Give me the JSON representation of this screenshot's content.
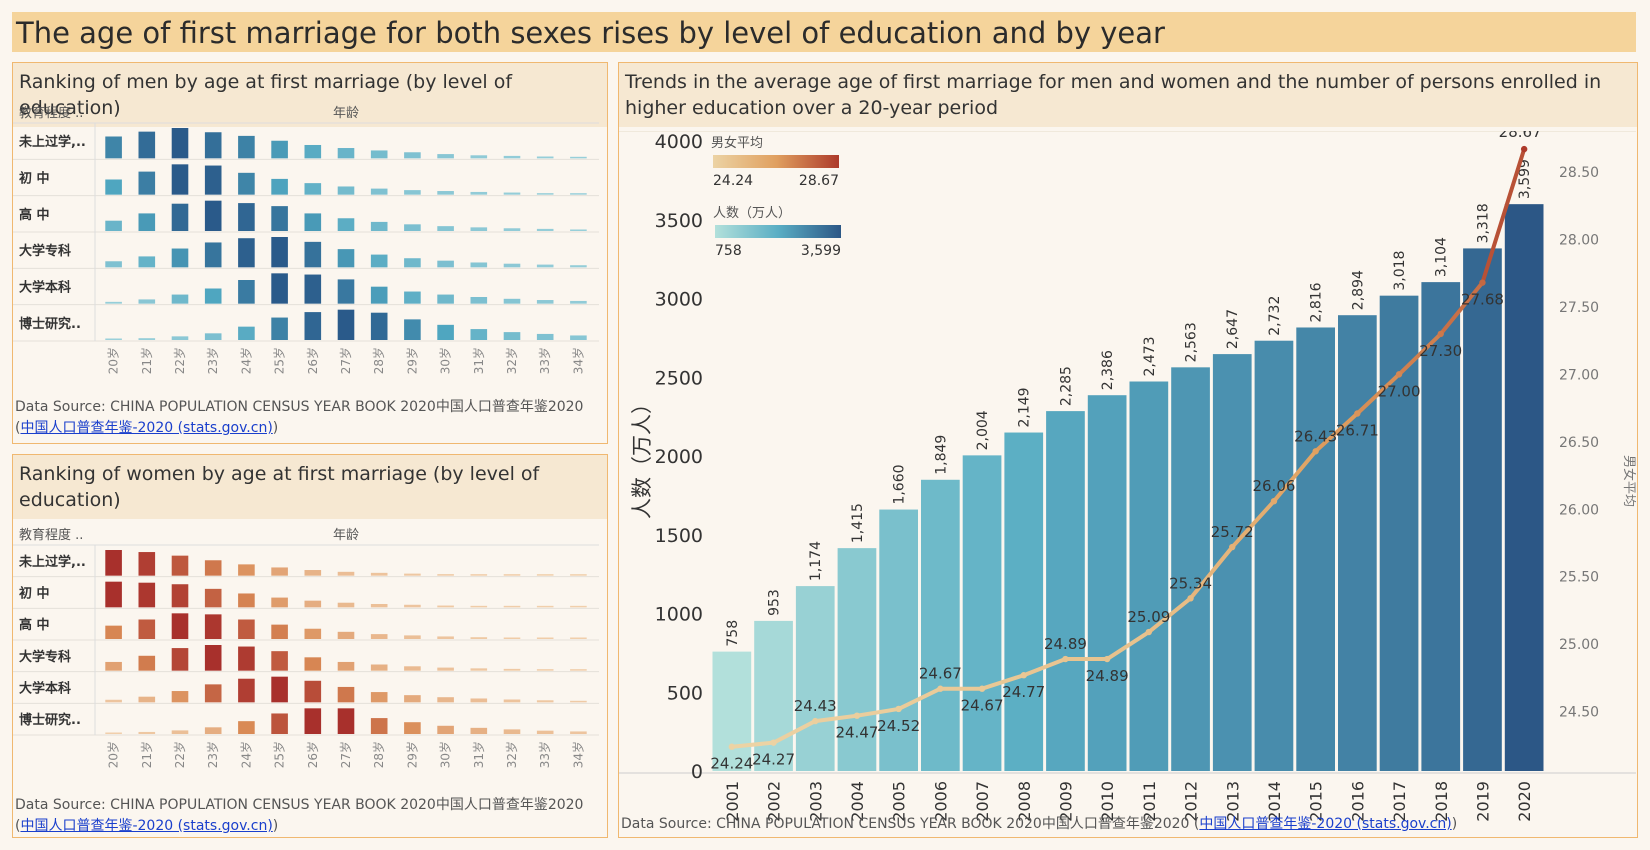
{
  "page_title": "The age of first marriage for both sexes rises by level of education and by year",
  "men_panel": {
    "title": "Ranking of men by age at first marriage (by level of education)",
    "row_header": "教育程度 ..",
    "col_header": "年龄",
    "source_prefix": "Data Source: CHINA POPULATION CENSUS YEAR BOOK 2020中国人口普查年鉴2020",
    "source_link": "中国人口普查年鉴-2020 (stats.gov.cn)"
  },
  "women_panel": {
    "title": "Ranking of women by age at first marriage (by level of education)",
    "row_header": "教育程度 ..",
    "col_header": "年龄",
    "source_prefix": "Data Source: CHINA POPULATION CENSUS YEAR BOOK 2020中国人口普查年鉴2020",
    "source_link": "中国人口普查年鉴-2020 (stats.gov.cn)"
  },
  "trend_panel": {
    "title": "Trends in the average age of first marriage for men and women and the number of persons enrolled in higher education over a 20-year period",
    "source_prefix": "Data Source: CHINA POPULATION CENSUS YEAR BOOK 2020中国人口普查年鉴2020 (",
    "source_link": "中国人口普查年鉴-2020 (stats.gov.cn)",
    "source_suffix": ")"
  },
  "colors": {
    "men_scale": [
      "#9fd3dc",
      "#4fa6c0",
      "#2a5a8a"
    ],
    "women_scale": [
      "#f2d3b0",
      "#d98a55",
      "#a8302c"
    ],
    "bar_scale": [
      "#b2e0db",
      "#5aaec4",
      "#2c5786"
    ],
    "line_scale": [
      "#ecd3a4",
      "#e0a060",
      "#ad3a2a"
    ]
  },
  "chart_data": [
    {
      "type": "heatmap",
      "title": "Ranking of men by age at first marriage (by level of education)",
      "row_label": "教育程度 ..",
      "col_label": "年龄",
      "rows": [
        "未上过学,..",
        "初 中",
        "高 中",
        "大学专科",
        "大学本科",
        "博士研究.."
      ],
      "cols": [
        "20岁",
        "21岁",
        "22岁",
        "23岁",
        "24岁",
        "25岁",
        "26岁",
        "27岁",
        "28岁",
        "29岁",
        "30岁",
        "31岁",
        "32岁",
        "33岁",
        "34岁"
      ],
      "values": [
        [
          0.72,
          0.88,
          1.0,
          0.86,
          0.74,
          0.58,
          0.44,
          0.34,
          0.26,
          0.2,
          0.14,
          0.1,
          0.08,
          0.06,
          0.05
        ],
        [
          0.5,
          0.76,
          1.0,
          0.96,
          0.72,
          0.52,
          0.38,
          0.27,
          0.2,
          0.15,
          0.12,
          0.09,
          0.07,
          0.05,
          0.04
        ],
        [
          0.34,
          0.58,
          0.9,
          1.0,
          0.92,
          0.82,
          0.58,
          0.42,
          0.3,
          0.22,
          0.16,
          0.12,
          0.09,
          0.07,
          0.05
        ],
        [
          0.2,
          0.36,
          0.62,
          0.82,
          0.96,
          1.0,
          0.84,
          0.6,
          0.42,
          0.3,
          0.22,
          0.16,
          0.12,
          0.09,
          0.07
        ],
        [
          0.06,
          0.14,
          0.3,
          0.5,
          0.78,
          1.0,
          0.96,
          0.8,
          0.56,
          0.4,
          0.3,
          0.22,
          0.16,
          0.12,
          0.09
        ],
        [
          0.03,
          0.06,
          0.12,
          0.22,
          0.44,
          0.74,
          0.92,
          1.0,
          0.9,
          0.68,
          0.5,
          0.36,
          0.26,
          0.2,
          0.15
        ]
      ]
    },
    {
      "type": "heatmap",
      "title": "Ranking of women by age at first marriage (by level of education)",
      "row_label": "教育程度 ..",
      "col_label": "年龄",
      "rows": [
        "未上过学,..",
        "初 中",
        "高 中",
        "大学专科",
        "大学本科",
        "博士研究.."
      ],
      "cols": [
        "20岁",
        "21岁",
        "22岁",
        "23岁",
        "24岁",
        "25岁",
        "26岁",
        "27岁",
        "28岁",
        "29岁",
        "30岁",
        "31岁",
        "32岁",
        "33岁",
        "34岁"
      ],
      "values": [
        [
          1.0,
          0.92,
          0.78,
          0.6,
          0.44,
          0.32,
          0.22,
          0.15,
          0.11,
          0.08,
          0.06,
          0.05,
          0.04,
          0.03,
          0.03
        ],
        [
          1.0,
          0.96,
          0.9,
          0.72,
          0.54,
          0.38,
          0.26,
          0.18,
          0.13,
          0.1,
          0.07,
          0.05,
          0.04,
          0.03,
          0.03
        ],
        [
          0.52,
          0.76,
          1.0,
          0.96,
          0.76,
          0.56,
          0.4,
          0.28,
          0.19,
          0.14,
          0.1,
          0.07,
          0.05,
          0.04,
          0.03
        ],
        [
          0.34,
          0.58,
          0.88,
          1.0,
          0.94,
          0.76,
          0.52,
          0.34,
          0.24,
          0.17,
          0.12,
          0.09,
          0.07,
          0.05,
          0.04
        ],
        [
          0.1,
          0.22,
          0.44,
          0.7,
          0.92,
          1.0,
          0.84,
          0.6,
          0.4,
          0.28,
          0.2,
          0.15,
          0.11,
          0.08,
          0.06
        ],
        [
          0.03,
          0.08,
          0.14,
          0.26,
          0.5,
          0.8,
          1.0,
          1.0,
          0.62,
          0.46,
          0.32,
          0.24,
          0.18,
          0.13,
          0.1
        ]
      ]
    },
    {
      "type": "bar",
      "title": "Trends in the average age of first marriage for men and women and the number of persons enrolled in higher education over a 20-year period",
      "categories": [
        "2001",
        "2002",
        "2003",
        "2004",
        "2005",
        "2006",
        "2007",
        "2008",
        "2009",
        "2010",
        "2011",
        "2012",
        "2013",
        "2014",
        "2015",
        "2016",
        "2017",
        "2018",
        "2019",
        "2020"
      ],
      "series": [
        {
          "name": "人数（万人）",
          "type": "bar",
          "axis": "left",
          "values": [
            758,
            953,
            1174,
            1415,
            1660,
            1849,
            2004,
            2149,
            2285,
            2386,
            2473,
            2563,
            2647,
            2732,
            2816,
            2894,
            3018,
            3104,
            3318,
            3599
          ],
          "labels": [
            "758",
            "953",
            "1,174",
            "1,415",
            "1,660",
            "1,849",
            "2,004",
            "2,149",
            "2,285",
            "2,386",
            "2,473",
            "2,563",
            "2,647",
            "2,732",
            "2,816",
            "2,894",
            "3,018",
            "3,104",
            "3,318",
            "3,599"
          ]
        },
        {
          "name": "男女平均",
          "type": "line",
          "axis": "right",
          "values": [
            24.24,
            24.27,
            24.43,
            24.47,
            24.52,
            24.67,
            24.67,
            24.77,
            24.89,
            24.89,
            25.09,
            25.34,
            25.72,
            26.06,
            26.43,
            26.71,
            27.0,
            27.3,
            27.68,
            28.67
          ],
          "labels": [
            "24.24",
            "24.27",
            "24.43",
            "24.47",
            "24.52",
            "24.67",
            "24.67",
            "24.77",
            "24.89",
            "24.89",
            "25.09",
            "25.34",
            "25.72",
            "26.06",
            "26.43",
            "26.71",
            "27.00",
            "27.30",
            "27.68",
            "28.67"
          ]
        }
      ],
      "ylabel": "人数（万人）",
      "ylim": [
        0,
        4000
      ],
      "yticks": [
        "0",
        "500",
        "1000",
        "1500",
        "2000",
        "2500",
        "3000",
        "3500",
        "4000"
      ],
      "y2label": "男女平均",
      "y2lim": [
        24.06,
        28.73
      ],
      "y2ticks": [
        "24.50",
        "25.00",
        "25.50",
        "26.00",
        "26.50",
        "27.00",
        "27.50",
        "28.00",
        "28.50"
      ],
      "legend": {
        "placement": "top-left",
        "line_title": "男女平均",
        "line_min": "24.24",
        "line_max": "28.67",
        "bar_title": "人数（万人）",
        "bar_min": "758",
        "bar_max": "3,599"
      }
    }
  ]
}
